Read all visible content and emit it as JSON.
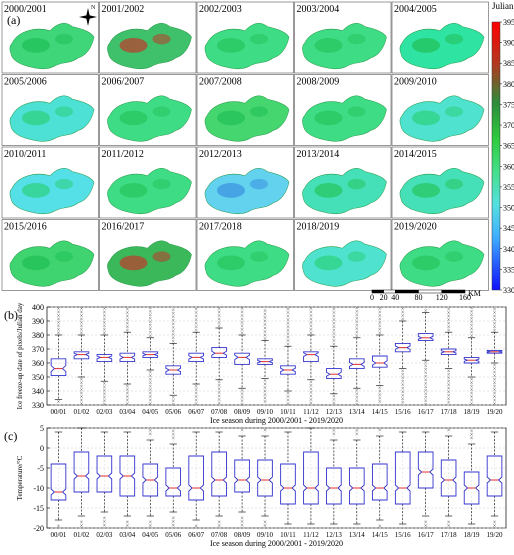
{
  "panel_a": {
    "label": "(a)",
    "colorbar_title": "Julian Day",
    "colorbar_ticks": [
      395,
      390,
      385,
      380,
      375,
      370,
      365,
      360,
      355,
      350,
      345,
      340,
      335,
      330
    ],
    "north_label": "N",
    "scale_ticks": [
      "0",
      "20",
      "40",
      "80",
      "120",
      "160"
    ],
    "scale_unit": "KM",
    "maps": [
      {
        "season": "2000/2001",
        "tone": "#3fd67a",
        "patch": "#1fbf55"
      },
      {
        "season": "2001/2002",
        "tone": "#3fc06a",
        "patch": "#c0392b"
      },
      {
        "season": "2002/2003",
        "tone": "#3fdc86",
        "patch": "#26c45d"
      },
      {
        "season": "2003/2004",
        "tone": "#3fdc86",
        "patch": "#26c45d"
      },
      {
        "season": "2004/2005",
        "tone": "#2fe3a2",
        "patch": "#1fbf55"
      },
      {
        "season": "2005/2006",
        "tone": "#4de0d4",
        "patch": "#2cd07c"
      },
      {
        "season": "2006/2007",
        "tone": "#3fdc86",
        "patch": "#26c45d"
      },
      {
        "season": "2007/2008",
        "tone": "#46d670",
        "patch": "#1fbf55"
      },
      {
        "season": "2008/2009",
        "tone": "#3fdc86",
        "patch": "#26c45d"
      },
      {
        "season": "2009/2010",
        "tone": "#4fe3cf",
        "patch": "#2cd07c"
      },
      {
        "season": "2010/2011",
        "tone": "#55dfe6",
        "patch": "#2cd07c"
      },
      {
        "season": "2011/2012",
        "tone": "#3fdc86",
        "patch": "#26c45d"
      },
      {
        "season": "2012/2013",
        "tone": "#62d2ee",
        "patch": "#3a8fe0"
      },
      {
        "season": "2013/2014",
        "tone": "#46e0b8",
        "patch": "#26c45d"
      },
      {
        "season": "2014/2015",
        "tone": "#46e0b8",
        "patch": "#26c45d"
      },
      {
        "season": "2015/2016",
        "tone": "#3fd470",
        "patch": "#1fbf55"
      },
      {
        "season": "2016/2017",
        "tone": "#3ab85a",
        "patch": "#c0392b"
      },
      {
        "season": "2017/2018",
        "tone": "#3fdc86",
        "patch": "#26c45d"
      },
      {
        "season": "2018/2019",
        "tone": "#4fe3cf",
        "patch": "#2cd07c"
      },
      {
        "season": "2019/2020",
        "tone": "#3fdc86",
        "patch": "#26c45d"
      }
    ]
  },
  "chart_data": [
    {
      "type": "box",
      "label": "(b)",
      "xlabel": "Ice season during 2000/2001 - 2019/2020",
      "ylabel": "Ice freeze-up date of pixels/Julian day",
      "ylim": [
        330,
        400
      ],
      "yticks": [
        330,
        340,
        350,
        360,
        370,
        380,
        390,
        400
      ],
      "grid": true,
      "categories": [
        "00/01",
        "01/02",
        "02/03",
        "03/04",
        "04/05",
        "05/06",
        "06/07",
        "07/08",
        "08/09",
        "09/10",
        "10/11",
        "11/12",
        "12/13",
        "13/14",
        "14/15",
        "15/16",
        "16/17",
        "17/18",
        "18/19",
        "19/20"
      ],
      "box": {
        "color": "#3333cc",
        "median_color": "#e03030",
        "outlier_color": "#444444"
      },
      "boxes": [
        {
          "q1": 351,
          "median": 356,
          "q3": 363,
          "lo": 334,
          "hi": 380
        },
        {
          "q1": 363,
          "median": 366,
          "q3": 368,
          "lo": 350,
          "hi": 380
        },
        {
          "q1": 361,
          "median": 364,
          "q3": 366,
          "lo": 347,
          "hi": 380
        },
        {
          "q1": 361,
          "median": 364,
          "q3": 367,
          "lo": 345,
          "hi": 382
        },
        {
          "q1": 364,
          "median": 366,
          "q3": 368,
          "lo": 355,
          "hi": 378
        },
        {
          "q1": 352,
          "median": 355,
          "q3": 358,
          "lo": 337,
          "hi": 374
        },
        {
          "q1": 361,
          "median": 364,
          "q3": 367,
          "lo": 345,
          "hi": 382
        },
        {
          "q1": 364,
          "median": 367,
          "q3": 371,
          "lo": 348,
          "hi": 385
        },
        {
          "q1": 359,
          "median": 364,
          "q3": 367,
          "lo": 342,
          "hi": 380
        },
        {
          "q1": 359,
          "median": 361,
          "q3": 363,
          "lo": 349,
          "hi": 376
        },
        {
          "q1": 352,
          "median": 355,
          "q3": 358,
          "lo": 340,
          "hi": 372
        },
        {
          "q1": 361,
          "median": 366,
          "q3": 368,
          "lo": 348,
          "hi": 380
        },
        {
          "q1": 349,
          "median": 352,
          "q3": 356,
          "lo": 338,
          "hi": 372
        },
        {
          "q1": 356,
          "median": 359,
          "q3": 363,
          "lo": 342,
          "hi": 378
        },
        {
          "q1": 357,
          "median": 360,
          "q3": 365,
          "lo": 344,
          "hi": 380
        },
        {
          "q1": 368,
          "median": 371,
          "q3": 374,
          "lo": 356,
          "hi": 390
        },
        {
          "q1": 376,
          "median": 378,
          "q3": 381,
          "lo": 362,
          "hi": 396
        },
        {
          "q1": 366,
          "median": 368,
          "q3": 370,
          "lo": 356,
          "hi": 382
        },
        {
          "q1": 360,
          "median": 362,
          "q3": 364,
          "lo": 350,
          "hi": 378
        },
        {
          "q1": 367,
          "median": 368,
          "q3": 369,
          "lo": 360,
          "hi": 382
        }
      ]
    },
    {
      "type": "box",
      "label": "(c)",
      "xlabel": "Ice season during 2000/2001 - 2019/2020",
      "ylabel": "Temperature/°C",
      "ylim": [
        -20,
        5
      ],
      "yticks": [
        -20,
        -15,
        -10,
        -5,
        0,
        5
      ],
      "grid": true,
      "categories": [
        "00/01",
        "01/02",
        "02/03",
        "03/04",
        "04/05",
        "05/06",
        "06/07",
        "07/08",
        "08/09",
        "09/10",
        "10/11",
        "11/12",
        "12/13",
        "13/14",
        "14/15",
        "15/16",
        "16/17",
        "17/18",
        "18/19",
        "19/20"
      ],
      "box": {
        "color": "#3333cc",
        "median_color": "#e03030",
        "outlier_color": "#444444"
      },
      "boxes": [
        {
          "q1": -13,
          "median": -11,
          "q3": -4,
          "lo": -18,
          "hi": 4
        },
        {
          "q1": -11,
          "median": -7,
          "q3": -1,
          "lo": -17,
          "hi": 5
        },
        {
          "q1": -11,
          "median": -7,
          "q3": -2,
          "lo": -16,
          "hi": 4
        },
        {
          "q1": -12,
          "median": -7,
          "q3": -2,
          "lo": -17,
          "hi": 4
        },
        {
          "q1": -12,
          "median": -8,
          "q3": -4,
          "lo": -17,
          "hi": 2
        },
        {
          "q1": -12,
          "median": -10,
          "q3": -5,
          "lo": -16,
          "hi": 1
        },
        {
          "q1": -13,
          "median": -10,
          "q3": -2,
          "lo": -18,
          "hi": 4
        },
        {
          "q1": -12,
          "median": -8,
          "q3": -1,
          "lo": -17,
          "hi": 4
        },
        {
          "q1": -11,
          "median": -8,
          "q3": -3,
          "lo": -16,
          "hi": 3
        },
        {
          "q1": -12,
          "median": -8,
          "q3": -3,
          "lo": -17,
          "hi": 3
        },
        {
          "q1": -14,
          "median": -10,
          "q3": -4,
          "lo": -19,
          "hi": 4
        },
        {
          "q1": -14,
          "median": -10,
          "q3": -1,
          "lo": -19,
          "hi": 5
        },
        {
          "q1": -14,
          "median": -10,
          "q3": -5,
          "lo": -19,
          "hi": 2
        },
        {
          "q1": -14,
          "median": -10,
          "q3": -5,
          "lo": -19,
          "hi": 2
        },
        {
          "q1": -13,
          "median": -10,
          "q3": -4,
          "lo": -18,
          "hi": 3
        },
        {
          "q1": -14,
          "median": -10,
          "q3": -1,
          "lo": -19,
          "hi": 4
        },
        {
          "q1": -10,
          "median": -6,
          "q3": -1,
          "lo": -17,
          "hi": 4
        },
        {
          "q1": -12,
          "median": -8,
          "q3": -3,
          "lo": -17,
          "hi": 3
        },
        {
          "q1": -14,
          "median": -10,
          "q3": -6,
          "lo": -19,
          "hi": 1
        },
        {
          "q1": -12,
          "median": -8,
          "q3": -2,
          "lo": -17,
          "hi": 4
        }
      ]
    }
  ]
}
